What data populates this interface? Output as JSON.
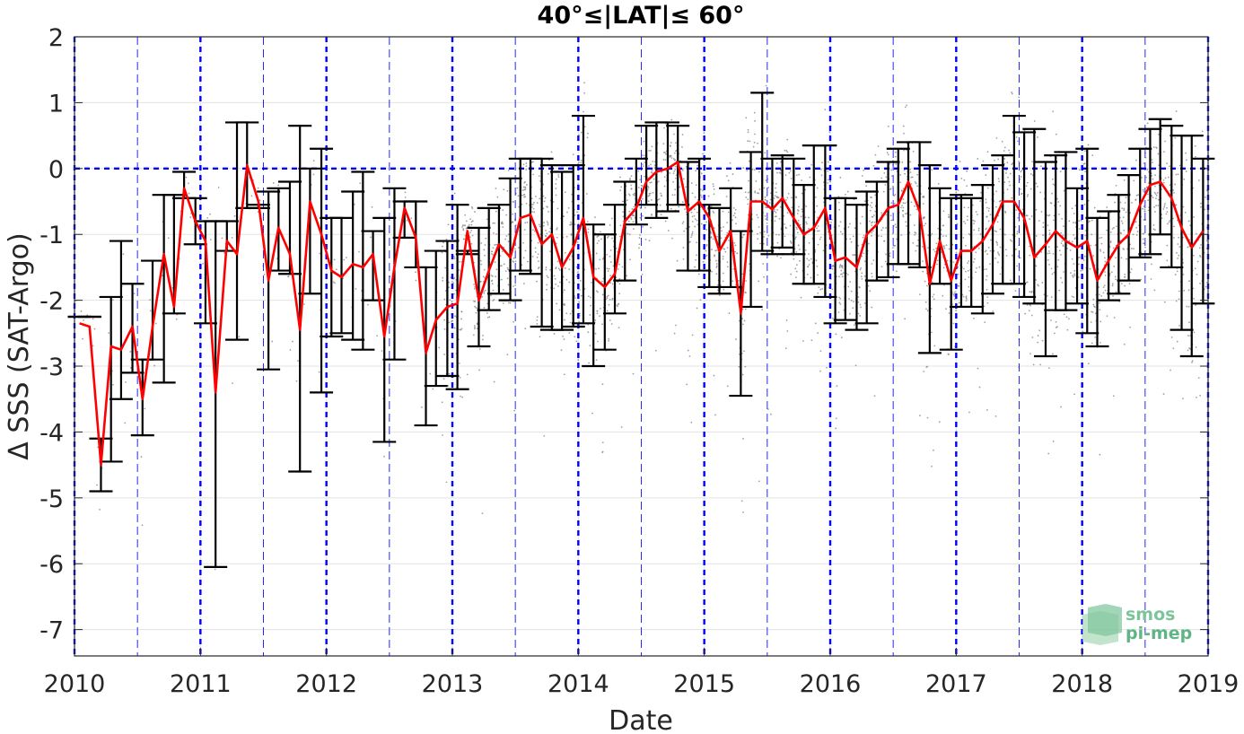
{
  "chart_data": {
    "type": "line",
    "title": "40°≤|LAT|≤ 60°",
    "xlabel": "Date",
    "ylabel": "Δ SSS (SAT-Argo)",
    "xlim": [
      2010,
      2019
    ],
    "ylim": [
      -7.4,
      2
    ],
    "x_ticks": [
      "2010",
      "2011",
      "2012",
      "2013",
      "2014",
      "2015",
      "2016",
      "2017",
      "2018",
      "2019"
    ],
    "y_ticks": [
      "2",
      "1",
      "0",
      "-1",
      "-2",
      "-3",
      "-4",
      "-5",
      "-6",
      "-7"
    ],
    "grid": true,
    "reference_lines": {
      "color": "#0000ff",
      "horizontal_y": 0,
      "year_lines": [
        2010,
        2011,
        2012,
        2013,
        2014,
        2015,
        2016,
        2017,
        2018,
        2019
      ],
      "half_year_lines": [
        2010.5,
        2011.5,
        2012.5,
        2013.5,
        2014.5,
        2015.5,
        2016.5,
        2017.5,
        2018.5
      ]
    },
    "series": [
      {
        "color": "#ff0000",
        "x": [
          2010.04,
          2010.12,
          2010.21,
          2010.29,
          2010.37,
          2010.46,
          2010.54,
          2010.62,
          2010.71,
          2010.79,
          2010.87,
          2010.96,
          2011.04,
          2011.12,
          2011.21,
          2011.29,
          2011.37,
          2011.46,
          2011.54,
          2011.62,
          2011.71,
          2011.79,
          2011.87,
          2011.96,
          2012.04,
          2012.12,
          2012.21,
          2012.29,
          2012.37,
          2012.46,
          2012.54,
          2012.62,
          2012.71,
          2012.79,
          2012.87,
          2012.96,
          2013.04,
          2013.12,
          2013.21,
          2013.29,
          2013.37,
          2013.46,
          2013.54,
          2013.62,
          2013.71,
          2013.79,
          2013.87,
          2013.96,
          2014.04,
          2014.12,
          2014.21,
          2014.29,
          2014.37,
          2014.46,
          2014.54,
          2014.62,
          2014.71,
          2014.79,
          2014.87,
          2014.96,
          2015.04,
          2015.12,
          2015.21,
          2015.29,
          2015.37,
          2015.46,
          2015.54,
          2015.62,
          2015.71,
          2015.79,
          2015.87,
          2015.96,
          2016.04,
          2016.12,
          2016.21,
          2016.29,
          2016.37,
          2016.46,
          2016.54,
          2016.62,
          2016.71,
          2016.79,
          2016.87,
          2016.96,
          2017.04,
          2017.12,
          2017.21,
          2017.29,
          2017.37,
          2017.46,
          2017.54,
          2017.62,
          2017.71,
          2017.79,
          2017.87,
          2017.96,
          2018.04,
          2018.12,
          2018.21,
          2018.29,
          2018.37,
          2018.46,
          2018.54,
          2018.62,
          2018.71,
          2018.79,
          2018.87,
          2018.96
        ],
        "y": [
          -2.35,
          -2.4,
          -4.5,
          -2.7,
          -2.75,
          -2.4,
          -3.5,
          -2.4,
          -1.3,
          -2.1,
          -0.3,
          -0.8,
          -1.1,
          -3.4,
          -1.1,
          -1.3,
          0.05,
          -0.5,
          -1.7,
          -0.9,
          -1.3,
          -2.45,
          -0.5,
          -1.0,
          -1.55,
          -1.65,
          -1.45,
          -1.5,
          -1.3,
          -2.55,
          -1.5,
          -0.6,
          -1.05,
          -2.8,
          -2.3,
          -2.1,
          -2.05,
          -0.95,
          -2.0,
          -1.55,
          -1.15,
          -1.35,
          -0.75,
          -0.7,
          -1.15,
          -1.0,
          -1.5,
          -1.2,
          -0.75,
          -1.65,
          -1.8,
          -1.6,
          -0.8,
          -0.6,
          -0.2,
          -0.05,
          -0.0,
          0.1,
          -0.65,
          -0.5,
          -0.75,
          -1.25,
          -0.95,
          -2.2,
          -0.5,
          -0.5,
          -0.62,
          -0.45,
          -0.75,
          -1.0,
          -0.9,
          -0.6,
          -1.4,
          -1.35,
          -1.5,
          -1.0,
          -0.85,
          -0.6,
          -0.55,
          -0.2,
          -0.65,
          -1.75,
          -1.1,
          -1.7,
          -1.25,
          -1.25,
          -1.1,
          -0.85,
          -0.5,
          -0.5,
          -0.75,
          -1.35,
          -1.15,
          -0.95,
          -1.1,
          -1.2,
          -1.1,
          -1.7,
          -1.4,
          -1.15,
          -1.0,
          -0.55,
          -0.25,
          -0.2,
          -0.45,
          -0.9,
          -1.2,
          -0.95
        ],
        "error_low": [
          -2.25,
          -2.25,
          -4.9,
          -4.45,
          -3.5,
          -3.1,
          -4.05,
          -2.9,
          -3.25,
          -2.2,
          -0.45,
          -1.15,
          -2.35,
          -6.05,
          -1.25,
          -2.6,
          -0.6,
          -0.6,
          -3.05,
          -1.55,
          -1.6,
          -4.6,
          -1.9,
          -3.4,
          -2.55,
          -2.5,
          -2.6,
          -2.75,
          -2.0,
          -4.15,
          -2.9,
          -1.05,
          -1.5,
          -3.9,
          -3.3,
          -3.15,
          -3.35,
          -1.3,
          -2.7,
          -2.15,
          -1.9,
          -2.0,
          -1.55,
          -1.6,
          -2.4,
          -2.45,
          -2.45,
          -2.4,
          -2.35,
          -3.0,
          -2.75,
          -2.2,
          -1.7,
          -0.85,
          -0.55,
          -0.75,
          -0.65,
          -0.55,
          -1.55,
          -1.55,
          -1.8,
          -1.9,
          -1.8,
          -3.45,
          -2.1,
          -1.25,
          -1.3,
          -1.2,
          -1.3,
          -1.75,
          -1.75,
          -1.95,
          -2.35,
          -2.3,
          -2.45,
          -2.35,
          -1.7,
          -1.65,
          -1.45,
          -1.45,
          -1.5,
          -2.8,
          -1.75,
          -2.75,
          -2.1,
          -2.1,
          -2.2,
          -1.9,
          -1.75,
          -1.75,
          -1.95,
          -2.05,
          -2.85,
          -2.15,
          -2.15,
          -2.05,
          -2.5,
          -2.7,
          -2.0,
          -1.9,
          -1.7,
          -1.35,
          -1.3,
          -1.0,
          -1.5,
          -2.45,
          -2.85,
          -2.05
        ],
        "error_high": [
          -2.25,
          -2.25,
          -4.1,
          -1.95,
          -1.1,
          -1.75,
          -2.9,
          -1.4,
          -0.4,
          -0.4,
          -0.05,
          -0.45,
          -0.8,
          -0.8,
          -0.8,
          0.7,
          0.7,
          -0.55,
          -0.35,
          -0.3,
          -0.2,
          0.65,
          0.0,
          0.3,
          -0.75,
          -0.75,
          -0.35,
          -0.05,
          -0.95,
          -0.75,
          -0.3,
          -0.5,
          -0.5,
          -1.5,
          -1.25,
          -1.1,
          -0.55,
          -1.25,
          -0.9,
          -0.6,
          -0.55,
          -0.15,
          0.15,
          0.15,
          0.15,
          0.05,
          -0.05,
          0.05,
          0.8,
          -0.85,
          -1.0,
          -0.55,
          -0.2,
          0.15,
          0.65,
          0.7,
          0.7,
          0.65,
          0.1,
          0.15,
          -0.55,
          -0.6,
          -0.3,
          -0.95,
          0.25,
          1.15,
          0.15,
          0.2,
          0.15,
          -0.25,
          0.35,
          0.35,
          -0.45,
          -0.45,
          -0.55,
          -0.35,
          -0.2,
          0.1,
          0.3,
          0.4,
          0.4,
          0.05,
          -0.3,
          -0.45,
          -0.4,
          -0.45,
          -0.25,
          0.05,
          0.2,
          0.8,
          0.55,
          0.6,
          0.1,
          0.2,
          0.25,
          -0.3,
          0.3,
          -0.75,
          -0.65,
          -0.4,
          -0.1,
          0.3,
          0.6,
          0.75,
          0.65,
          0.5,
          0.5,
          0.15
        ]
      }
    ],
    "scatter_color": "#808080",
    "logo_text": [
      "smos",
      "pi-mep"
    ]
  }
}
